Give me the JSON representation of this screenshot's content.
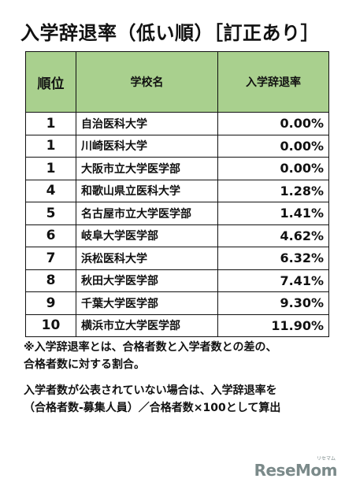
{
  "title": "入学辞退率（低い順）［訂正あり］",
  "table": {
    "headers": [
      "順位",
      "学校名",
      "入学辞退率"
    ],
    "rows": [
      {
        "rank": "1",
        "school": "自治医科大学",
        "rate": "0.00%"
      },
      {
        "rank": "1",
        "school": "川崎医科大学",
        "rate": "0.00%"
      },
      {
        "rank": "1",
        "school": "大阪市立大学医学部",
        "rate": "0.00%"
      },
      {
        "rank": "4",
        "school": "和歌山県立医科大学",
        "rate": "1.28%"
      },
      {
        "rank": "5",
        "school": "名古屋市立大学医学部",
        "rate": "1.41%"
      },
      {
        "rank": "6",
        "school": "岐阜大学医学部",
        "rate": "4.62%"
      },
      {
        "rank": "7",
        "school": "浜松医科大学",
        "rate": "6.32%"
      },
      {
        "rank": "8",
        "school": "秋田大学医学部",
        "rate": "7.41%"
      },
      {
        "rank": "9",
        "school": "千葉大学医学部",
        "rate": "9.30%"
      },
      {
        "rank": "10",
        "school": "横浜市立大学医学部",
        "rate": "11.90%"
      }
    ],
    "header_color": "#a9d08e"
  },
  "notes": {
    "line1": "※入学辞退率とは、合格者数と入学者数との差の、",
    "line2": "合格者数に対する割合。",
    "line3": "入学者数が公表されていない場合は、入学辞退率を",
    "line4": "（合格者数-募集人員）／合格者数×100として算出"
  },
  "logo": {
    "text": "ReseMom",
    "ruby": "リセマム"
  }
}
